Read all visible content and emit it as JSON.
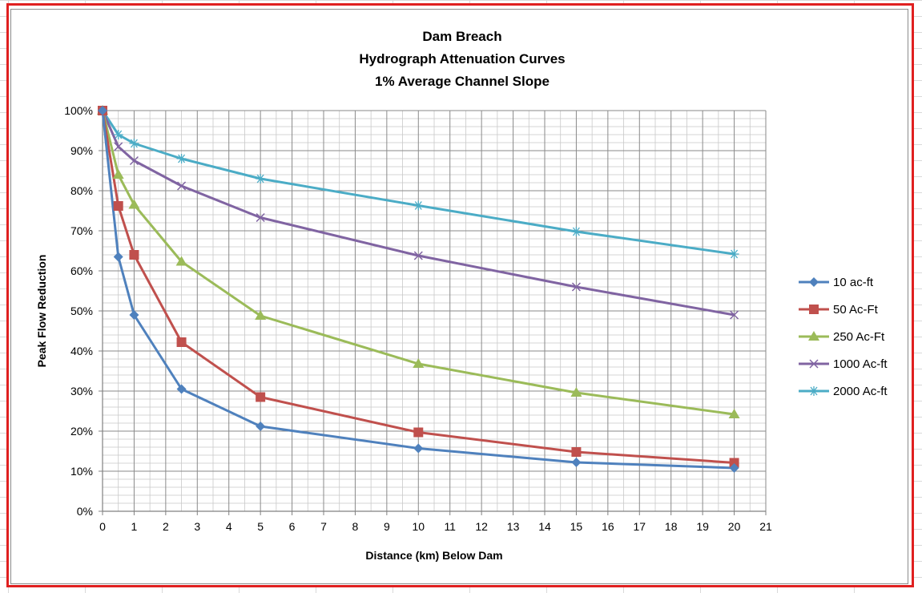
{
  "chart_data": {
    "type": "line",
    "title_lines": [
      "Dam Breach",
      "Hydrograph Attenuation Curves",
      "1% Average Channel Slope"
    ],
    "xlabel": "Distance (km) Below Dam",
    "ylabel": "Peak Flow Reduction",
    "xlim": [
      0,
      21
    ],
    "ylim": [
      0,
      100
    ],
    "x_ticks": [
      0,
      1,
      2,
      3,
      4,
      5,
      6,
      7,
      8,
      9,
      10,
      11,
      12,
      13,
      14,
      15,
      16,
      17,
      18,
      19,
      20,
      21
    ],
    "y_ticks": [
      0,
      10,
      20,
      30,
      40,
      50,
      60,
      70,
      80,
      90,
      100
    ],
    "y_tick_labels": [
      "0%",
      "10%",
      "20%",
      "30%",
      "40%",
      "50%",
      "60%",
      "70%",
      "80%",
      "90%",
      "100%"
    ],
    "grid": true,
    "legend_position": "right",
    "x": [
      0,
      0.5,
      1,
      2.5,
      5,
      10,
      15,
      20
    ],
    "series": [
      {
        "name": "10 ac-ft",
        "color": "#4f81bd",
        "marker": "diamond",
        "values": [
          100,
          63.5,
          49,
          30.5,
          21.2,
          15.7,
          12.2,
          10.8
        ]
      },
      {
        "name": "50 Ac-Ft",
        "color": "#c0504d",
        "marker": "square",
        "values": [
          100,
          76.2,
          64,
          42.2,
          28.5,
          19.7,
          14.8,
          12.1
        ]
      },
      {
        "name": "250 Ac-Ft",
        "color": "#9bbb59",
        "marker": "triangle",
        "values": [
          100,
          84,
          76.5,
          62.3,
          48.8,
          36.8,
          29.6,
          24.2
        ]
      },
      {
        "name": "1000 Ac-ft",
        "color": "#8064a2",
        "marker": "x",
        "values": [
          100,
          91,
          87.5,
          81.2,
          73.3,
          63.8,
          56,
          49
        ]
      },
      {
        "name": "2000 Ac-ft",
        "color": "#4bacc6",
        "marker": "star",
        "values": [
          100,
          94,
          91.8,
          88,
          83,
          76.3,
          69.8,
          64.2
        ]
      }
    ]
  }
}
